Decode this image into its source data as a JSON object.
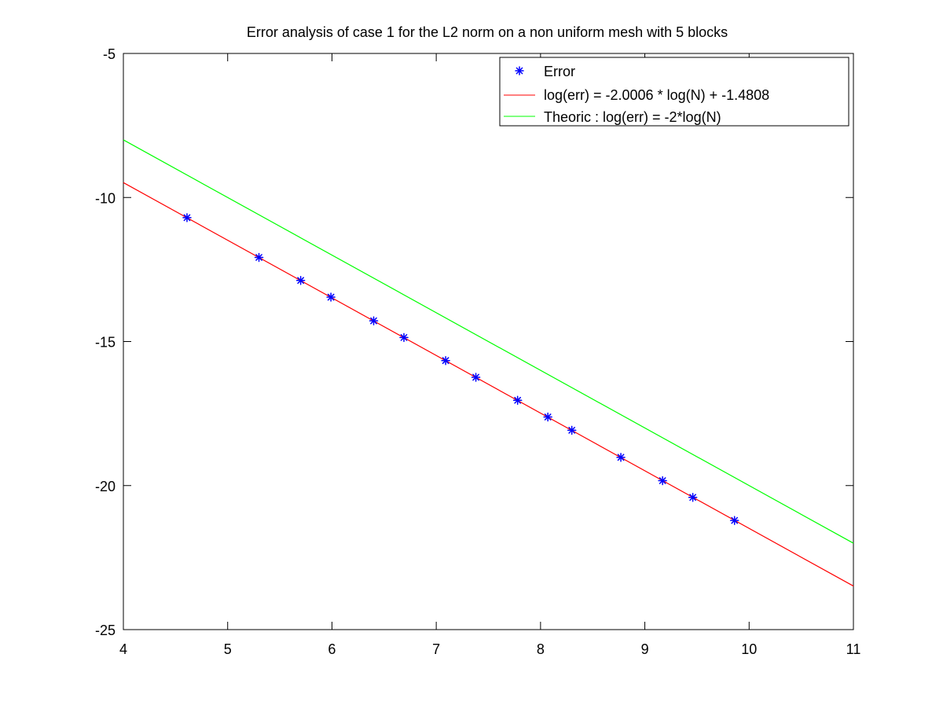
{
  "chart_data": {
    "type": "line",
    "title": "Error analysis of case 1 for the L2 norm on a non uniform mesh with 5 blocks",
    "xlabel": "",
    "ylabel": "",
    "xlim": [
      4,
      11
    ],
    "ylim": [
      -25,
      -5
    ],
    "x_ticks": [
      4,
      5,
      6,
      7,
      8,
      9,
      10,
      11
    ],
    "y_ticks": [
      -5,
      -10,
      -15,
      -20,
      -25
    ],
    "grid": false,
    "legend_position": "top-right",
    "series": [
      {
        "name": "Error",
        "kind": "markers",
        "marker": "asterisk",
        "color": "#0000ff",
        "points": [
          [
            4.61,
            -10.7
          ],
          [
            5.3,
            -12.08
          ],
          [
            5.7,
            -12.88
          ],
          [
            5.99,
            -13.46
          ],
          [
            6.4,
            -14.28
          ],
          [
            6.69,
            -14.86
          ],
          [
            7.09,
            -15.66
          ],
          [
            7.38,
            -16.24
          ],
          [
            7.78,
            -17.04
          ],
          [
            8.07,
            -17.62
          ],
          [
            8.3,
            -18.08
          ],
          [
            8.77,
            -19.02
          ],
          [
            9.17,
            -19.83
          ],
          [
            9.46,
            -20.41
          ],
          [
            9.86,
            -21.21
          ]
        ]
      },
      {
        "name": "log(err) = -2.0006 * log(N) + -1.4808",
        "kind": "line",
        "color": "#ff0000",
        "slope": -2.0006,
        "intercept": -1.4808
      },
      {
        "name": "Theoric : log(err) = -2*log(N)",
        "kind": "line",
        "color": "#00ff00",
        "slope": -2,
        "intercept": 0
      }
    ]
  }
}
